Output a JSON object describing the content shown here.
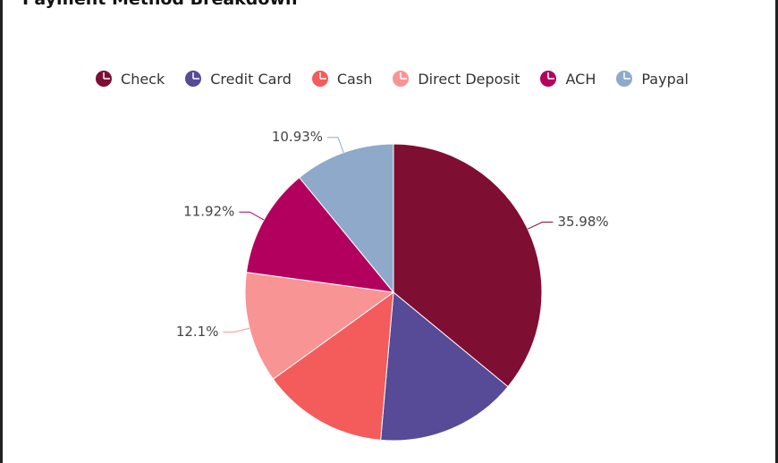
{
  "chart_data": {
    "type": "pie",
    "title": "Payment Method Breakdown",
    "categories": [
      "Check",
      "Credit Card",
      "Cash",
      "Direct Deposit",
      "ACH",
      "Paypal"
    ],
    "values": [
      35.98,
      15.4,
      13.67,
      12.1,
      11.92,
      10.93
    ],
    "value_labels": [
      "35.98%",
      null,
      null,
      "12.1%",
      "11.92%",
      "10.93%"
    ],
    "colors": [
      "#7f0e33",
      "#574a96",
      "#f45b5b",
      "#f99494",
      "#b3005f",
      "#8fa9cb"
    ],
    "legend": "top"
  }
}
